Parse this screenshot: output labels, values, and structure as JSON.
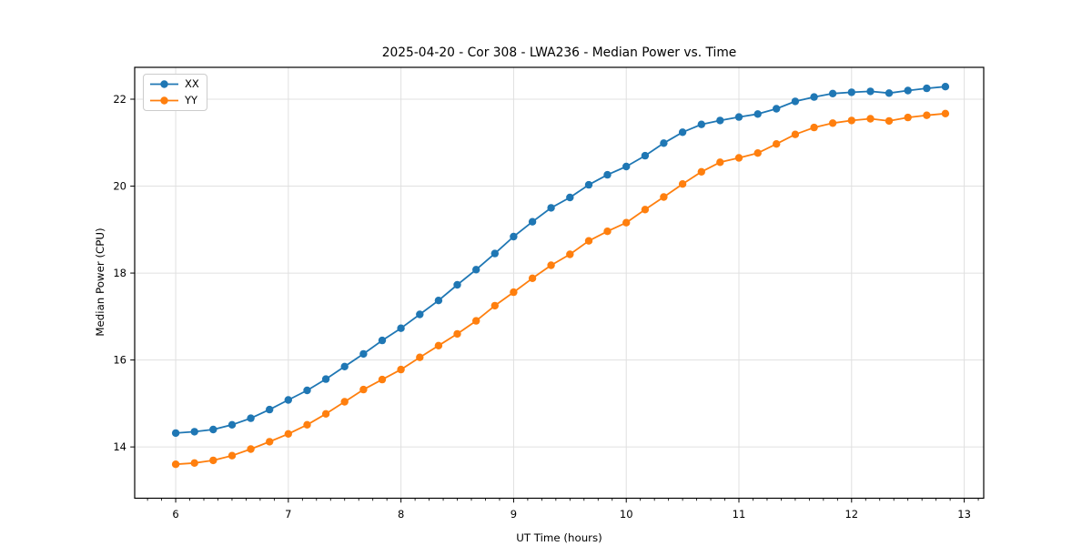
{
  "chart_data": {
    "type": "line",
    "title": "2025-04-20 - Cor 308 - LWA236 - Median Power vs. Time",
    "xlabel": "UT Time (hours)",
    "ylabel": "Median Power (CPU)",
    "x": [
      6.0,
      6.167,
      6.333,
      6.5,
      6.667,
      6.833,
      7.0,
      7.167,
      7.333,
      7.5,
      7.667,
      7.833,
      8.0,
      8.167,
      8.333,
      8.5,
      8.667,
      8.833,
      9.0,
      9.167,
      9.333,
      9.5,
      9.667,
      9.833,
      10.0,
      10.167,
      10.333,
      10.5,
      10.667,
      10.833,
      11.0,
      11.167,
      11.333,
      11.5,
      11.667,
      11.833,
      12.0,
      12.167,
      12.333,
      12.5,
      12.667,
      12.833
    ],
    "series": [
      {
        "name": "XX",
        "color": "#1f77b4",
        "marker": "circle",
        "values": [
          14.32,
          14.35,
          14.4,
          14.51,
          14.66,
          14.86,
          15.08,
          15.3,
          15.56,
          15.85,
          16.14,
          16.45,
          16.73,
          17.05,
          17.37,
          17.73,
          18.08,
          18.45,
          18.84,
          19.18,
          19.5,
          19.74,
          20.03,
          20.26,
          20.45,
          20.7,
          20.99,
          21.24,
          21.42,
          21.51,
          21.59,
          21.66,
          21.78,
          21.95,
          22.05,
          22.13,
          22.16,
          22.18,
          22.14,
          22.2,
          22.25,
          22.29
        ]
      },
      {
        "name": "YY",
        "color": "#ff7f0e",
        "marker": "circle",
        "values": [
          13.6,
          13.63,
          13.69,
          13.8,
          13.95,
          14.12,
          14.3,
          14.51,
          14.76,
          15.04,
          15.32,
          15.55,
          15.78,
          16.06,
          16.33,
          16.6,
          16.9,
          17.25,
          17.56,
          17.88,
          18.18,
          18.43,
          18.74,
          18.96,
          19.16,
          19.46,
          19.75,
          20.05,
          20.33,
          20.55,
          20.65,
          20.76,
          20.97,
          21.19,
          21.35,
          21.45,
          21.51,
          21.55,
          21.5,
          21.58,
          21.63,
          21.67
        ]
      }
    ],
    "xticks": [
      "6",
      "7",
      "8",
      "9",
      "10",
      "11",
      "12",
      "13"
    ],
    "xtick_values": [
      6,
      7,
      8,
      9,
      10,
      11,
      12,
      13
    ],
    "yticks": [
      "14",
      "16",
      "18",
      "20",
      "22"
    ],
    "ytick_values": [
      14,
      16,
      18,
      20,
      22
    ],
    "xlim": [
      5.636,
      13.173
    ],
    "ylim": [
      12.82,
      22.733
    ],
    "x_minor_step": 0.125,
    "grid": true,
    "legend_position": "upper left"
  },
  "colors": {
    "grid": "#e0e0e0",
    "spine": "#000000",
    "background": "#ffffff",
    "series_xx": "#1f77b4",
    "series_yy": "#ff7f0e"
  }
}
